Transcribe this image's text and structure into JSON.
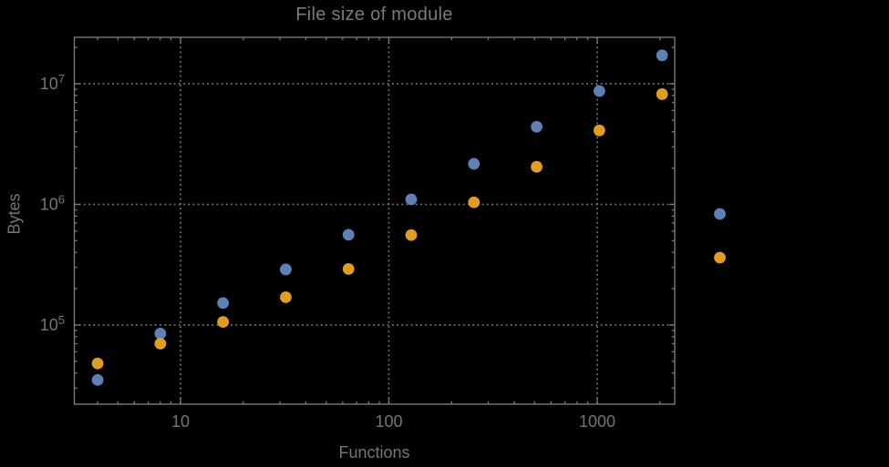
{
  "chart_data": {
    "type": "scatter",
    "title": "File size of module",
    "xlabel": "Functions",
    "ylabel": "Bytes",
    "x_scale": "log",
    "y_scale": "log",
    "xlim": [
      3.1,
      2350
    ],
    "ylim": [
      22000,
      24300000
    ],
    "grid": "dotted lines at major ticks, frame on all four sides with inward log minor ticks",
    "legend_position": "outside right, markers only (no visible label text)",
    "x": [
      4,
      8,
      16,
      32,
      64,
      128,
      256,
      512,
      1024,
      2048
    ],
    "series": [
      {
        "name": "series-1-blue",
        "color": "#5e81b5",
        "values": [
          35000,
          85000,
          152000,
          289000,
          560000,
          1100000,
          2170000,
          4400000,
          8700000,
          17200000
        ]
      },
      {
        "name": "series-2-orange",
        "color": "#e19c24",
        "values": [
          48000,
          70000,
          106000,
          170000,
          291000,
          556000,
          1040000,
          2050000,
          4100000,
          8200000
        ]
      }
    ],
    "x_ticks": [
      {
        "value": 10,
        "label": "10"
      },
      {
        "value": 100,
        "label": "100"
      },
      {
        "value": 1000,
        "label": "1000"
      }
    ],
    "y_ticks": [
      {
        "value": 100000,
        "base": "10",
        "exp": "5"
      },
      {
        "value": 1000000,
        "base": "10",
        "exp": "6"
      },
      {
        "value": 10000000,
        "base": "10",
        "exp": "7"
      }
    ],
    "legend_markers": [
      {
        "color": "#5e81b5"
      },
      {
        "color": "#e19c24"
      }
    ],
    "colors": {
      "background": "#000000",
      "frame": "#787878",
      "grid": "#757575",
      "text": "#757575",
      "title_text": "#7a7a7a"
    }
  }
}
